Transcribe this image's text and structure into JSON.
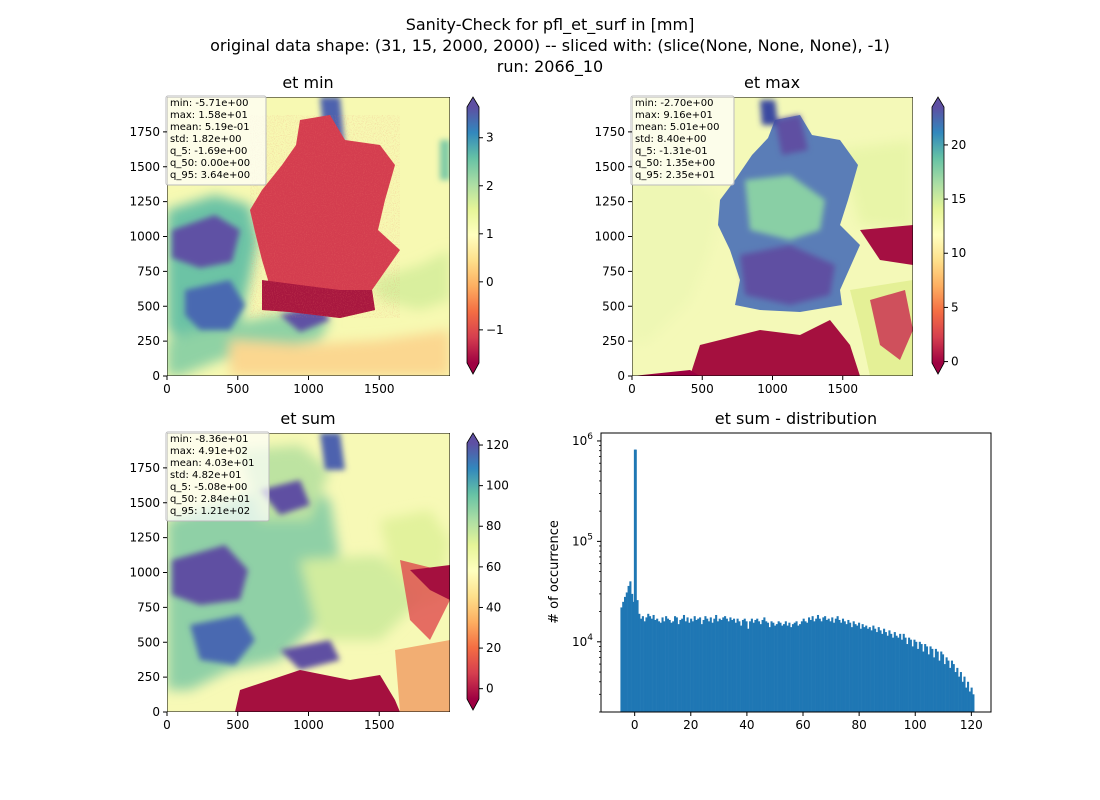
{
  "figure": {
    "title_line1": "Sanity-Check for pfl_et_surf in [mm]",
    "title_line2": "original data shape: (31, 15, 2000, 2000) -- sliced with: (slice(None, None, None), -1)",
    "title_line3": "run: 2066_10"
  },
  "chart_data": [
    {
      "type": "heatmap",
      "title": "et min",
      "xlim": [
        0,
        2000
      ],
      "ylim": [
        0,
        2000
      ],
      "x_ticks": [
        0,
        500,
        1000,
        1500
      ],
      "y_ticks": [
        0,
        250,
        500,
        750,
        1000,
        1250,
        1500,
        1750
      ],
      "colormap": "Spectral",
      "colorbar_ticks": [
        -1,
        0,
        1,
        2,
        3
      ],
      "colorbar_range": [
        -1.69,
        3.64
      ],
      "stats": [
        "min: -5.71e+00",
        "max: 1.58e+01",
        "mean: 5.19e-01",
        "std: 1.82e+00",
        "q_5: -1.69e+00",
        "q_50: 0.00e+00",
        "q_95: 3.64e+00"
      ]
    },
    {
      "type": "heatmap",
      "title": "et max",
      "xlim": [
        0,
        2000
      ],
      "ylim": [
        0,
        2000
      ],
      "x_ticks": [
        0,
        500,
        1000,
        1500
      ],
      "y_ticks": [
        0,
        250,
        500,
        750,
        1000,
        1250,
        1500,
        1750
      ],
      "colormap": "Spectral",
      "colorbar_ticks": [
        0,
        5,
        10,
        15,
        20
      ],
      "colorbar_range": [
        -0.131,
        23.5
      ],
      "stats": [
        "min: -2.70e+00",
        "max: 9.16e+01",
        "mean: 5.01e+00",
        "std: 8.40e+00",
        "q_5: -1.31e-01",
        "q_50: 1.35e+00",
        "q_95: 2.35e+01"
      ]
    },
    {
      "type": "heatmap",
      "title": "et sum",
      "xlim": [
        0,
        2000
      ],
      "ylim": [
        0,
        2000
      ],
      "x_ticks": [
        0,
        500,
        1000,
        1500
      ],
      "y_ticks": [
        0,
        250,
        500,
        750,
        1000,
        1250,
        1500,
        1750
      ],
      "colormap": "Spectral",
      "colorbar_ticks": [
        0,
        20,
        40,
        60,
        80,
        100,
        120
      ],
      "colorbar_range": [
        -5.08,
        121
      ],
      "stats": [
        "min: -8.36e+01",
        "max: 4.91e+02",
        "mean: 4.03e+01",
        "std: 4.82e+01",
        "q_5: -5.08e+00",
        "q_50: 2.84e+01",
        "q_95: 1.21e+02"
      ]
    },
    {
      "type": "bar",
      "title": "et sum - distribution",
      "ylabel": "# of occurrence",
      "xlabel": "",
      "yscale": "log",
      "xlim": [
        -12,
        127
      ],
      "ylim": [
        2000,
        1200000
      ],
      "x_ticks": [
        0,
        20,
        40,
        60,
        80,
        100,
        120
      ],
      "y_ticks": [
        10000,
        100000,
        1000000
      ],
      "y_tick_labels": [
        [
          "10",
          "4"
        ],
        [
          "10",
          "5"
        ],
        [
          "10",
          "6"
        ]
      ],
      "bar_color": "#1f77b4",
      "bins_start": -5.08,
      "bins_end": 121,
      "peak": {
        "x": 0,
        "count": 820000
      },
      "counts": [
        22000,
        25000,
        28000,
        31000,
        36000,
        40000,
        30000,
        25000,
        820000,
        26000,
        19000,
        17000,
        18000,
        16000,
        17500,
        19000,
        18000,
        17000,
        18500,
        16500,
        17000,
        16000,
        15500,
        17500,
        16000,
        18000,
        17000,
        16500,
        15500,
        16000,
        18000,
        17500,
        15000,
        16500,
        17000,
        18500,
        16000,
        17500,
        15500,
        17000,
        16000,
        18000,
        16500,
        17000,
        17500,
        15000,
        16500,
        18000,
        17000,
        16000,
        17500,
        15500,
        17000,
        18500,
        16000,
        17000,
        16500,
        17500,
        18000,
        17000,
        16000,
        17500,
        16500,
        17000,
        15500,
        17000,
        16000,
        14500,
        16500,
        17000,
        16000,
        13500,
        16000,
        17000,
        15500,
        16500,
        17000,
        16000,
        15000,
        16500,
        17500,
        16000,
        15500,
        14000,
        16000,
        15500,
        14500,
        15000,
        16000,
        15500,
        14500,
        15000,
        16000,
        14500,
        15500,
        14000,
        15000,
        15500,
        16000,
        14500,
        15000,
        16000,
        17000,
        16000,
        15500,
        17500,
        16500,
        18000,
        16000,
        17000,
        18500,
        17000,
        16000,
        17500,
        18000,
        16500,
        17000,
        16000,
        17500,
        15500,
        17000,
        18000,
        16500,
        15500,
        17000,
        16000,
        15000,
        16500,
        15500,
        14000,
        16000,
        15000,
        14500,
        15500,
        13500,
        15000,
        14000,
        14500,
        13500,
        14000,
        13000,
        14500,
        13500,
        12500,
        14000,
        13000,
        12000,
        13500,
        12500,
        11500,
        13000,
        12000,
        11000,
        12500,
        11500,
        11000,
        12000,
        10500,
        12000,
        11000,
        9500,
        11000,
        10500,
        9000,
        10500,
        10000,
        8500,
        10000,
        9500,
        8000,
        9500,
        9000,
        7500,
        9000,
        8500,
        7000,
        8500,
        8000,
        6500,
        8000,
        7500,
        6000,
        7000,
        6500,
        5500,
        6500,
        6000,
        5000,
        5500,
        4500,
        5000,
        4000,
        4500,
        3500,
        4000,
        3200,
        3500,
        3000
      ]
    }
  ]
}
